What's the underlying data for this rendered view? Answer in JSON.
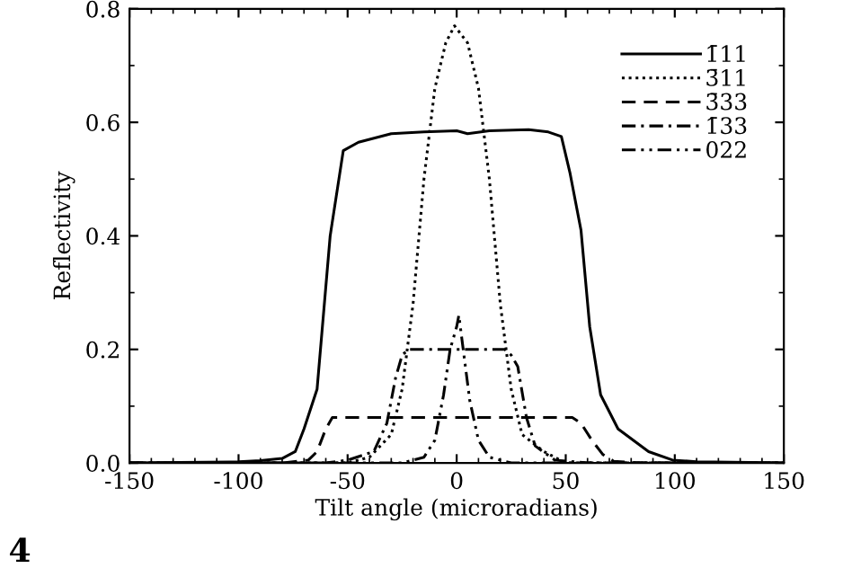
{
  "chart_data": {
    "type": "line",
    "xlabel": "Tilt angle (microradians)",
    "ylabel": "Reflectivity",
    "xlim": [
      -150,
      150
    ],
    "ylim": [
      0,
      0.8
    ],
    "xticks": [
      -150,
      -100,
      -50,
      0,
      50,
      100,
      150
    ],
    "yticks": [
      {
        "value": 0,
        "label": "0.0"
      },
      0.2,
      0.4,
      0.6,
      0.8
    ],
    "grid": false,
    "legend": "top right",
    "marker": "none",
    "annotations": [
      "4"
    ],
    "series": [
      {
        "name": "1̄11",
        "color": "#000000",
        "line_style": "solid",
        "x": [
          -150,
          -100,
          -90,
          -80,
          -74,
          -70,
          -64,
          -58,
          -52,
          -45,
          -30,
          -15,
          0,
          5,
          15,
          33,
          42,
          48,
          52,
          57,
          61,
          66,
          74,
          88,
          99,
          110,
          150
        ],
        "values": [
          0,
          0.002,
          0.004,
          0.008,
          0.02,
          0.06,
          0.13,
          0.4,
          0.55,
          0.565,
          0.58,
          0.583,
          0.585,
          0.58,
          0.585,
          0.587,
          0.583,
          0.575,
          0.51,
          0.41,
          0.24,
          0.12,
          0.06,
          0.02,
          0.005,
          0.002,
          0
        ]
      },
      {
        "name": "3̄11",
        "color": "#000000",
        "line_style": "dotted",
        "x": [
          -150,
          -50,
          -40,
          -30,
          -25,
          -20,
          -15,
          -10,
          -5,
          -1,
          5,
          10,
          15,
          20,
          25,
          30,
          40,
          50,
          150
        ],
        "values": [
          0,
          0,
          0.01,
          0.05,
          0.13,
          0.28,
          0.5,
          0.66,
          0.74,
          0.77,
          0.74,
          0.66,
          0.5,
          0.28,
          0.13,
          0.05,
          0.02,
          0,
          0
        ]
      },
      {
        "name": "3̄33",
        "color": "#000000",
        "line_style": "dashed",
        "x": [
          -150,
          -80,
          -68,
          -64,
          -60,
          -57,
          -40,
          0,
          40,
          53,
          57,
          62,
          67,
          72,
          85,
          150
        ],
        "values": [
          0,
          0,
          0.005,
          0.02,
          0.06,
          0.08,
          0.08,
          0.08,
          0.08,
          0.08,
          0.07,
          0.04,
          0.015,
          0.003,
          0,
          0
        ]
      },
      {
        "name": "1̄33",
        "color": "#000000",
        "line_style": "dashdot",
        "x": [
          -150,
          -60,
          -50,
          -38,
          -32,
          -28,
          -25,
          -22,
          0,
          22,
          25,
          28,
          32,
          36,
          45,
          60,
          150
        ],
        "values": [
          0,
          0,
          0.005,
          0.02,
          0.07,
          0.15,
          0.19,
          0.2,
          0.2,
          0.2,
          0.19,
          0.17,
          0.08,
          0.03,
          0.005,
          0,
          0
        ]
      },
      {
        "name": "022",
        "color": "#000000",
        "line_style": "dashdotdot",
        "x": [
          -150,
          -25,
          -15,
          -10,
          -6,
          -3,
          0,
          1,
          3,
          6,
          10,
          15,
          25,
          150
        ],
        "values": [
          0,
          0,
          0.01,
          0.04,
          0.12,
          0.2,
          0.24,
          0.26,
          0.2,
          0.11,
          0.04,
          0.01,
          0,
          0
        ]
      }
    ]
  }
}
